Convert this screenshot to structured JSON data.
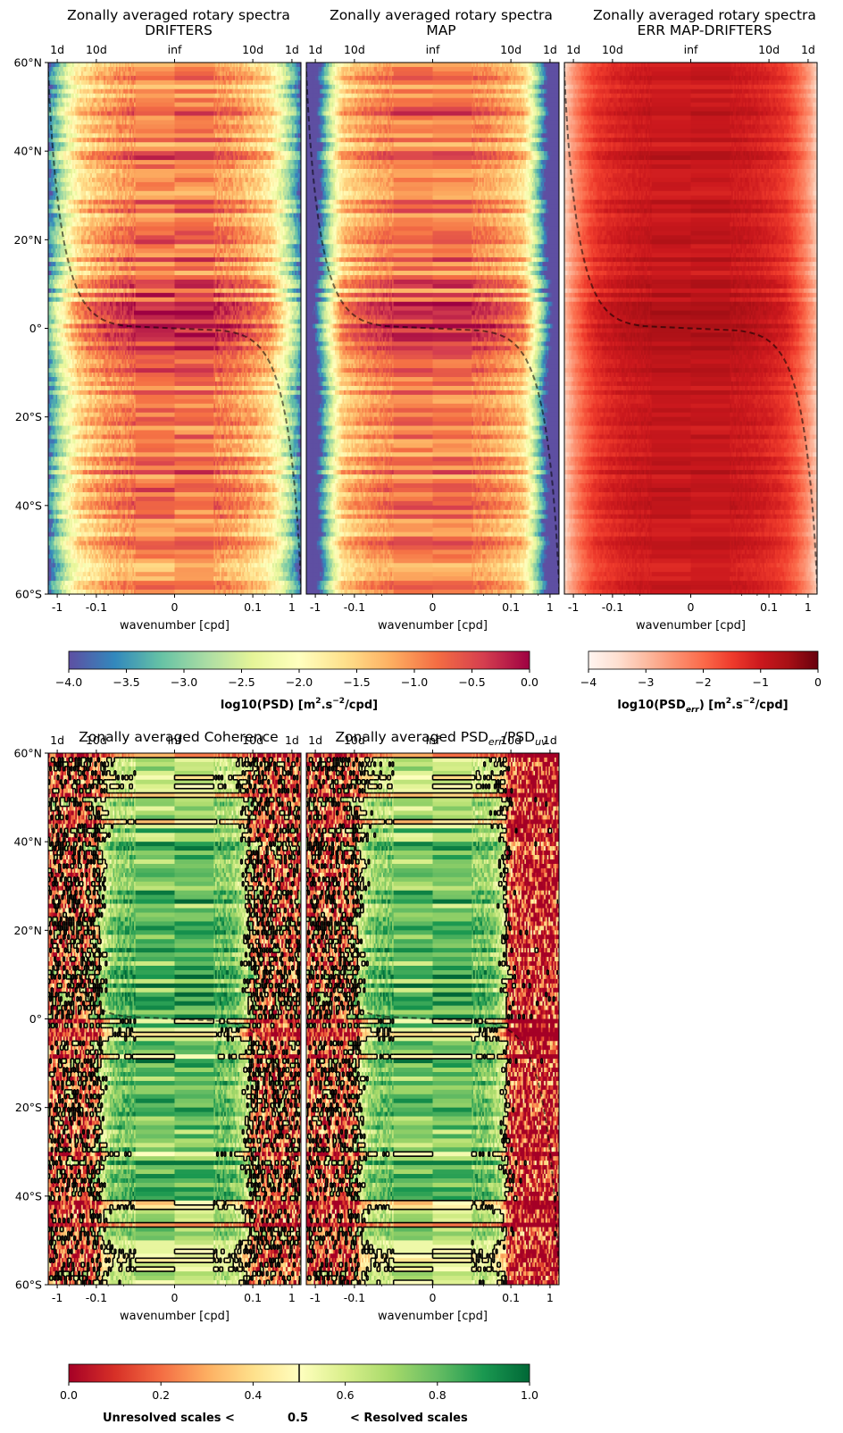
{
  "chart_data": [
    {
      "type": "heatmap",
      "title": "Zonally averaged rotary spectra",
      "subtitle": "DRIFTERS",
      "xlabel": "wavenumber [cpd]",
      "x_ticks": [
        "-1",
        "-0.1",
        "0",
        "0.1",
        "1"
      ],
      "top_ticks": [
        "1d",
        "10d",
        "inf",
        "10d",
        "1d"
      ],
      "y_ticks": [
        "60°N",
        "40°N",
        "20°N",
        "0°",
        "20°S",
        "40°S",
        "60°S"
      ],
      "ylim": [
        -60,
        60
      ],
      "colormap": "Spectral_r",
      "clim": [
        -4,
        0
      ],
      "inertial_curve": true
    },
    {
      "type": "heatmap",
      "title": "Zonally averaged rotary spectra",
      "subtitle": "MAP",
      "xlabel": "wavenumber [cpd]",
      "x_ticks": [
        "-1",
        "-0.1",
        "0",
        "0.1",
        "1"
      ],
      "top_ticks": [
        "1d",
        "10d",
        "inf",
        "10d",
        "1d"
      ],
      "ylim": [
        -60,
        60
      ],
      "colormap": "Spectral_r",
      "clim": [
        -4,
        0
      ],
      "inertial_curve": true
    },
    {
      "type": "heatmap",
      "title": "Zonally averaged rotary spectra",
      "subtitle": "ERR MAP-DRIFTERS",
      "xlabel": "wavenumber [cpd]",
      "x_ticks": [
        "-1",
        "-0.1",
        "0",
        "0.1",
        "1"
      ],
      "top_ticks": [
        "1d",
        "10d",
        "inf",
        "10d",
        "1d"
      ],
      "ylim": [
        -60,
        60
      ],
      "colormap": "Reds",
      "clim": [
        -4,
        0
      ],
      "inertial_curve": true
    },
    {
      "type": "heatmap",
      "title": "Zonally averaged Coherence",
      "xlabel": "wavenumber [cpd]",
      "x_ticks": [
        "-1",
        "-0.1",
        "0",
        "0.1",
        "1"
      ],
      "top_ticks": [
        "1d",
        "10d",
        "inf",
        "10d",
        "1d"
      ],
      "y_ticks": [
        "60°N",
        "40°N",
        "20°N",
        "0°",
        "20°S",
        "40°S",
        "60°S"
      ],
      "ylim": [
        -60,
        60
      ],
      "colormap": "RdYlGn",
      "clim": [
        0,
        1
      ],
      "contour_level": 0.5,
      "inertial_curve": true
    },
    {
      "type": "heatmap",
      "title": "Zonally averaged PSD",
      "title_sub1": "err",
      "title_mid": "/PSD",
      "title_sub2": "uv",
      "xlabel": "wavenumber [cpd]",
      "x_ticks": [
        "-1",
        "-0.1",
        "0",
        "0.1",
        "1"
      ],
      "top_ticks": [
        "1d",
        "10d",
        "inf",
        "10d",
        "1d"
      ],
      "ylim": [
        -60,
        60
      ],
      "colormap": "RdYlGn",
      "clim": [
        0,
        1
      ],
      "contour_level": 0.5,
      "inertial_curve": true
    }
  ],
  "colorbars": {
    "psd": {
      "ticks": [
        "−4.0",
        "−3.5",
        "−3.0",
        "−2.5",
        "−2.0",
        "−1.5",
        "−1.0",
        "−0.5",
        "0.0"
      ],
      "label_main": "log10(PSD) [m",
      "label_sup1": "2",
      "label_mid": ".s",
      "label_sup2": "−2",
      "label_end": "/cpd]"
    },
    "err": {
      "ticks": [
        "−4",
        "−3",
        "−2",
        "−1",
        "0"
      ],
      "label_main": "log10(PSD",
      "label_sub": "err",
      "label_mid": ") [m",
      "label_sup1": "2",
      "label_mid2": ".s",
      "label_sup2": "−2",
      "label_end": "/cpd]"
    },
    "coh": {
      "ticks": [
        "0.0",
        "0.2",
        "0.4",
        "0.6",
        "0.8",
        "1.0"
      ],
      "label_left": "Unresolved scales <",
      "label_center": "0.5",
      "label_right": "< Resolved scales"
    }
  },
  "colors": {
    "spectral": [
      "#5e4fa2",
      "#3288bd",
      "#66c2a5",
      "#abdda4",
      "#e6f598",
      "#ffffbf",
      "#fee08b",
      "#fdae61",
      "#f46d43",
      "#d53e4f",
      "#9e0142"
    ],
    "reds": [
      "#fff5f0",
      "#fee0d2",
      "#fcbba1",
      "#fc9272",
      "#fb6a4a",
      "#ef3b2c",
      "#cb181d",
      "#a50f15",
      "#67000d"
    ],
    "rdylgn": [
      "#a50026",
      "#d73027",
      "#f46d43",
      "#fdae61",
      "#fee08b",
      "#ffffbf",
      "#d9ef8b",
      "#a6d96a",
      "#66bd63",
      "#1a9850",
      "#006837"
    ]
  }
}
